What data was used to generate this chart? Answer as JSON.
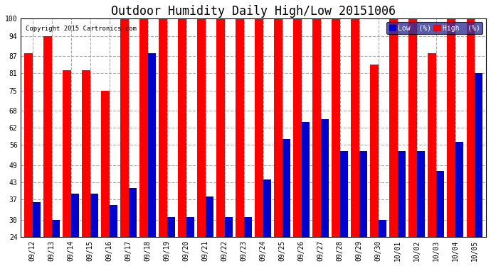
{
  "title": "Outdoor Humidity Daily High/Low 20151006",
  "copyright": "Copyright 2015 Cartronics.com",
  "dates": [
    "09/12",
    "09/13",
    "09/14",
    "09/15",
    "09/16",
    "09/17",
    "09/18",
    "09/19",
    "09/20",
    "09/21",
    "09/22",
    "09/23",
    "09/24",
    "09/25",
    "09/26",
    "09/27",
    "09/28",
    "09/29",
    "09/30",
    "10/01",
    "10/02",
    "10/03",
    "10/04",
    "10/05"
  ],
  "high": [
    88,
    94,
    82,
    82,
    75,
    100,
    100,
    100,
    100,
    100,
    100,
    100,
    100,
    100,
    100,
    100,
    100,
    100,
    84,
    100,
    100,
    88,
    100,
    100
  ],
  "low": [
    36,
    30,
    39,
    39,
    35,
    41,
    88,
    31,
    31,
    38,
    31,
    31,
    44,
    58,
    64,
    65,
    54,
    54,
    30,
    54,
    54,
    47,
    57,
    81
  ],
  "high_color": "#ff0000",
  "low_color": "#0000cc",
  "bg_color": "#ffffff",
  "grid_color": "#aaaaaa",
  "ylim_min": 24,
  "ylim_max": 100,
  "yticks": [
    24,
    30,
    37,
    43,
    49,
    56,
    62,
    68,
    75,
    81,
    87,
    94,
    100
  ],
  "bar_width": 0.42,
  "title_fontsize": 12,
  "tick_fontsize": 7,
  "legend_label_low": "Low  (%)",
  "legend_label_high": "High  (%)"
}
